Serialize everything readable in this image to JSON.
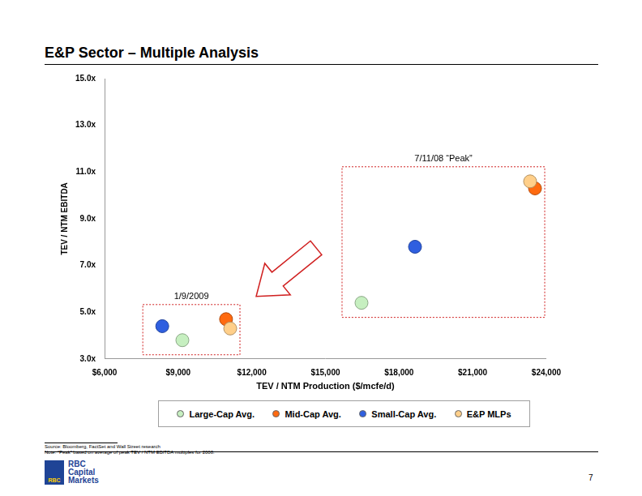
{
  "chart_data": {
    "type": "scatter",
    "title": "E&P Sector – Multiple Analysis",
    "x_label": "TEV / NTM Production ($/mcfe/d)",
    "y_label": "TEV / NTM EBITDA",
    "xlim": [
      6000,
      24000
    ],
    "xticks": [
      {
        "value": 6000,
        "label": "$6,000"
      },
      {
        "value": 9000,
        "label": "$9,000"
      },
      {
        "value": 12000,
        "label": "$12,000"
      },
      {
        "value": 15000,
        "label": "$15,000"
      },
      {
        "value": 18000,
        "label": "$18,000"
      },
      {
        "value": 21000,
        "label": "$21,000"
      },
      {
        "value": 24000,
        "label": "$24,000"
      }
    ],
    "ylim": [
      3,
      15
    ],
    "yticks": [
      {
        "value": 3,
        "label": "3.0x"
      },
      {
        "value": 5,
        "label": "5.0x"
      },
      {
        "value": 7,
        "label": "7.0x"
      },
      {
        "value": 9,
        "label": "9.0x"
      },
      {
        "value": 11,
        "label": "11.0x"
      },
      {
        "value": 13,
        "label": "13.0x"
      },
      {
        "value": 15,
        "label": "15.0x"
      }
    ],
    "grid": false,
    "legend": "bottom",
    "annotations": [
      "1/9/2009",
      "7/11/08 “Peak”"
    ],
    "series": [
      {
        "name": "Large-Cap Avg.",
        "color": "#c6efc0",
        "marker": "circle",
        "x": [
          9170,
          16470
        ],
        "values": [
          3.8,
          5.4
        ]
      },
      {
        "name": "Small-Cap Avg.",
        "color": "#2f5fe0",
        "marker": "circle",
        "x": [
          8350,
          18650
        ],
        "values": [
          4.4,
          7.8
        ]
      },
      {
        "name": "E&P MLPs",
        "color": "#ffcf8a",
        "marker": "circle",
        "x": [
          11120,
          23340
        ],
        "values": [
          4.3,
          10.6
        ]
      },
      {
        "name": "Mid-Cap Avg.",
        "color": "#ff6a10",
        "marker": "circle",
        "x": [
          10950,
          23540
        ],
        "values": [
          4.7,
          10.3
        ]
      }
    ],
    "legend_order": [
      "Large-Cap Avg.",
      "Mid-Cap Avg.",
      "Small-Cap Avg.",
      "E&P MLPs"
    ]
  },
  "footnotes": [
    "Source: Bloomberg, FactSet and Wall Street research",
    "Note: “Peak” based on average of peak TEV / NTM EBITDA multiples for 2008."
  ],
  "page_number": "7",
  "logo": {
    "mark": "RBC",
    "text": [
      "RBC",
      "Capital",
      "Markets"
    ]
  }
}
